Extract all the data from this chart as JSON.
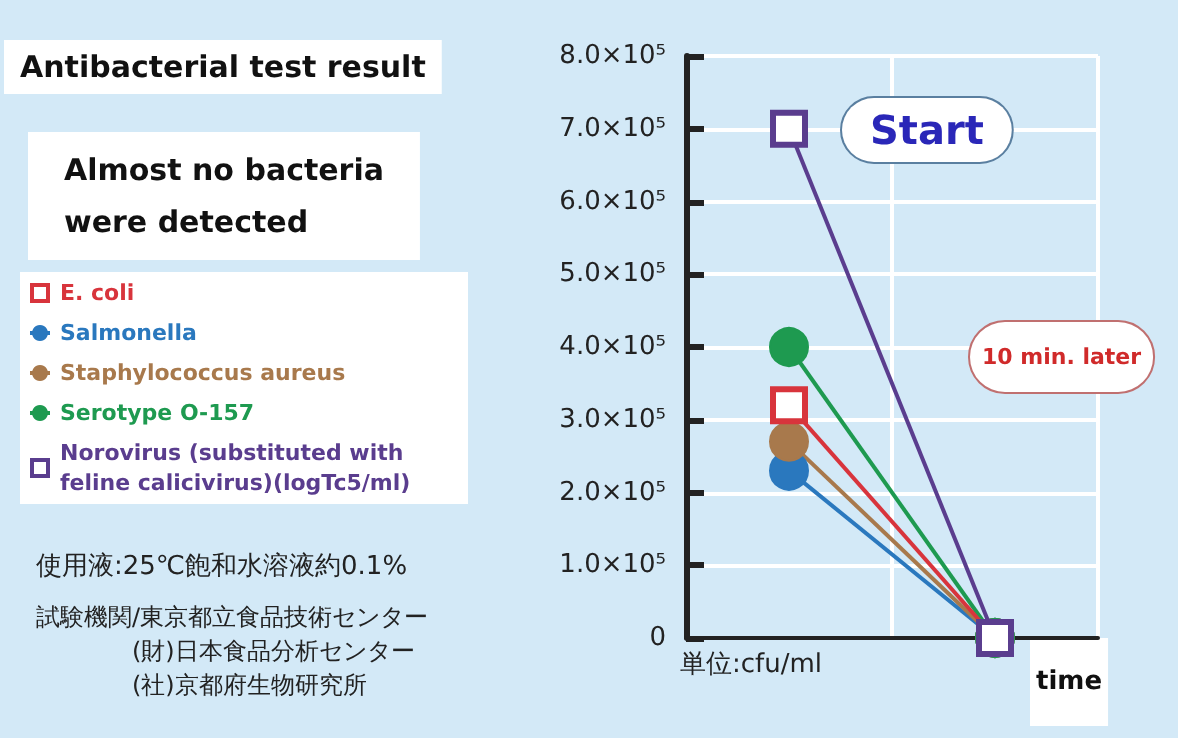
{
  "chart_data": {
    "type": "line",
    "title": "Antibacterial test result",
    "subtitle": "Almost no bacteria\nwere detected",
    "xlabel": "time",
    "categories": [
      null,
      null
    ],
    "series": [
      {
        "name": "E. coli",
        "color": "#d8343c",
        "marker": "square",
        "values": [
          320000,
          0
        ]
      },
      {
        "name": "Salmonella",
        "color": "#2a78be",
        "marker": "circle",
        "values": [
          230000,
          0
        ]
      },
      {
        "name": "Staphylococcus aureus",
        "color": "#a8794c",
        "marker": "circle",
        "values": [
          270000,
          0
        ]
      },
      {
        "name": "Serotype O-157",
        "color": "#1e9a50",
        "marker": "circle",
        "values": [
          400000,
          0
        ]
      },
      {
        "name": "Norovirus (substituted with feline calicivirus)(logTc5/ml)",
        "color": "#5a3d8e",
        "marker": "square",
        "values": [
          700000,
          0
        ]
      }
    ],
    "ylim": [
      0,
      800000
    ],
    "yticks": [
      0,
      {
        "value": 100000,
        "label": "1.0×10⁵"
      },
      {
        "value": 200000,
        "label": "2.0×10⁵"
      },
      {
        "value": 300000,
        "label": "3.0×10⁵"
      },
      {
        "value": 400000,
        "label": "4.0×10⁵"
      },
      {
        "value": 500000,
        "label": "5.0×10⁵"
      },
      {
        "value": 600000,
        "label": "6.0×10⁵"
      },
      {
        "value": 700000,
        "label": "7.0×10⁵"
      },
      {
        "value": 800000,
        "label": "8.0×10⁵"
      }
    ],
    "grid": true,
    "legend": "left",
    "annotations": [
      "Start",
      "10 min. later",
      "単位:cfu/ml",
      "使用液:25℃飽和水溶液約0.1%",
      "試験機関/東京都立食品技術センター\n　　　　(財)日本食品分析センター\n　　　　(社)京都府生物研究所"
    ]
  }
}
